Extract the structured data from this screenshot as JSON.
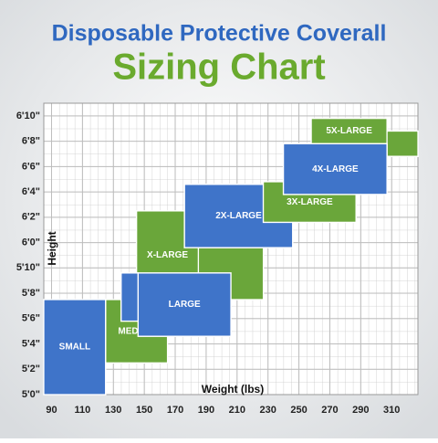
{
  "chart_data": {
    "type": "size-regions",
    "title": "Disposable Protective Coverall",
    "subtitle": "Sizing Chart",
    "x_label": "Weight (lbs)",
    "y_label": "Height",
    "xlim": [
      85,
      327
    ],
    "ylim": [
      60,
      83
    ],
    "xticks": [
      90,
      110,
      130,
      150,
      170,
      190,
      210,
      230,
      250,
      270,
      290,
      310
    ],
    "yticks": [
      {
        "value": 60,
        "label": "5'0\""
      },
      {
        "value": 62,
        "label": "5'2\""
      },
      {
        "value": 64,
        "label": "5'4\""
      },
      {
        "value": 66,
        "label": "5'6\""
      },
      {
        "value": 68,
        "label": "5'8\""
      },
      {
        "value": 70,
        "label": "5'10\""
      },
      {
        "value": 72,
        "label": "6'0\""
      },
      {
        "value": 74,
        "label": "6'2\""
      },
      {
        "value": 76,
        "label": "6'4\""
      },
      {
        "value": 78,
        "label": "6'6\""
      },
      {
        "value": 80,
        "label": "6'8\""
      },
      {
        "value": 82,
        "label": "6'10\""
      }
    ],
    "grid": true,
    "series": [
      {
        "name": "SMALL",
        "color": "#3f74c9",
        "regions": [
          [
            85,
            125,
            60,
            67.5
          ]
        ]
      },
      {
        "name": "MEDIUM",
        "color": "#6aa63a",
        "regions": [
          [
            125,
            165,
            62.5,
            67.5
          ]
        ]
      },
      {
        "name": "X-LARGE",
        "color": "#6aa63a",
        "regions": [
          [
            145,
            185,
            67.5,
            74.5
          ],
          [
            185,
            227,
            67.5,
            71.6
          ]
        ]
      },
      {
        "name": "LARGE",
        "color": "#3f74c9",
        "regions": [
          [
            135,
            146,
            65.8,
            69.6
          ],
          [
            146,
            206,
            64.6,
            69.6
          ]
        ]
      },
      {
        "name": "2X-LARGE",
        "color": "#3f74c9",
        "regions": [
          [
            176,
            246,
            71.6,
            76.6
          ]
        ]
      },
      {
        "name": "3X-LARGE",
        "color": "#6aa63a",
        "regions": [
          [
            227,
            287,
            73.6,
            76.8
          ]
        ]
      },
      {
        "name": "5X-LARGE",
        "color": "#6aa63a",
        "regions": [
          [
            258,
            307,
            79.8,
            81.8
          ],
          [
            307,
            327,
            78.8,
            80.8
          ]
        ]
      },
      {
        "name": "4X-LARGE",
        "color": "#3f74c9",
        "regions": [
          [
            240,
            307,
            75.8,
            79.8
          ]
        ]
      }
    ]
  }
}
